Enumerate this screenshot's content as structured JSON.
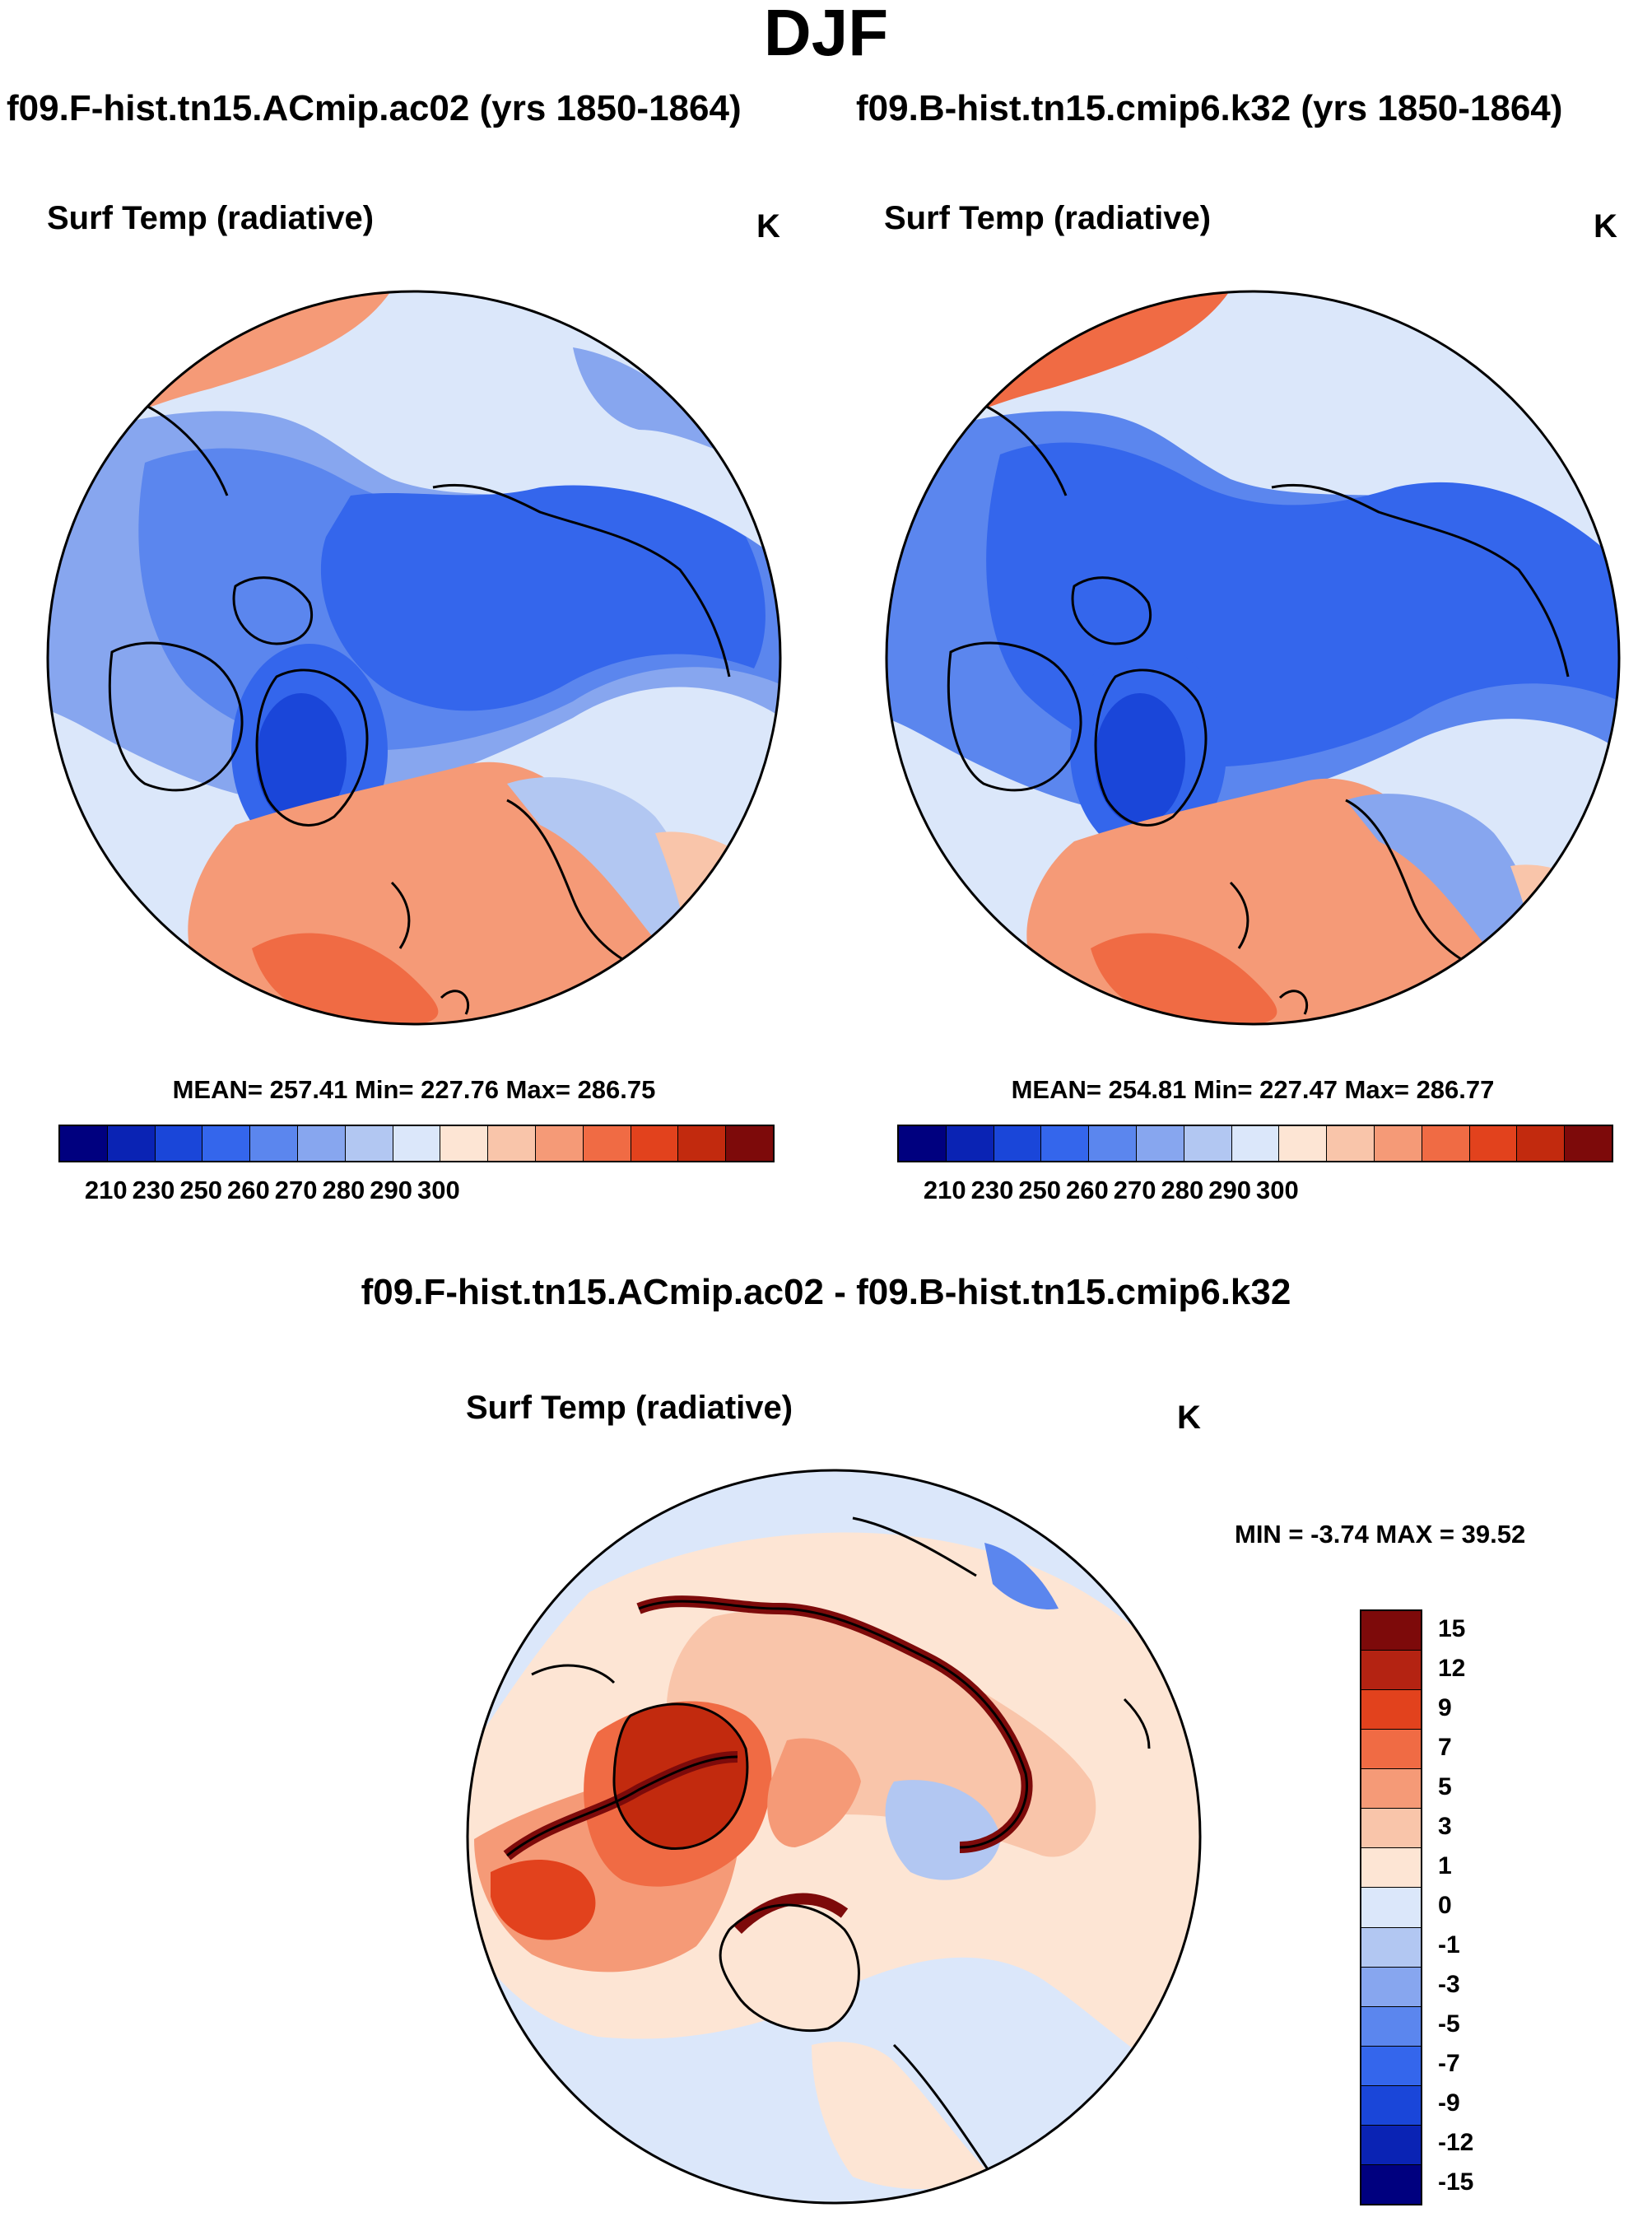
{
  "figure": {
    "season": "DJF",
    "case_left": "f09.F-hist.tn15.ACmip.ac02 (yrs 1850-1864)",
    "case_right": "f09.B-hist.tn15.cmip6.k32 (yrs 1850-1864)",
    "diff_title": "f09.F-hist.tn15.ACmip.ac02 - f09.B-hist.tn15.cmip6.k32"
  },
  "panels": {
    "left": {
      "variable": "Surf Temp (radiative)",
      "units": "K",
      "stats": "MEAN= 257.41  Min= 227.76  Max= 286.75"
    },
    "right": {
      "variable": "Surf Temp (radiative)",
      "units": "K",
      "stats": "MEAN= 254.81  Min= 227.47  Max= 286.77"
    },
    "diff": {
      "variable": "Surf Temp (radiative)",
      "units": "K",
      "stats": "MIN =  -3.74 MAX =  39.52"
    }
  },
  "colorbars": {
    "abs_colors": [
      "#00007f",
      "#0a23b4",
      "#1a46d9",
      "#3466ec",
      "#5b86ee",
      "#87a6ef",
      "#b2c7f2",
      "#dbe7fa",
      "#fde5d4",
      "#f9c5aa",
      "#f59a77",
      "#f06b44",
      "#e2421d",
      "#c22a0e",
      "#7d0a0a"
    ],
    "abs_ticks": [
      "210",
      "230",
      "250",
      "260",
      "270",
      "280",
      "290",
      "300"
    ],
    "diff_colors": [
      "#7d0a0a",
      "#b42312",
      "#e2421d",
      "#f06b44",
      "#f59a77",
      "#f9c5aa",
      "#fde5d4",
      "#dbe7fa",
      "#b2c7f2",
      "#87a6ef",
      "#5b86ee",
      "#3466ec",
      "#1a46d9",
      "#0a23b4",
      "#00007f"
    ],
    "diff_ticks": [
      "15",
      "12",
      "9",
      "7",
      "5",
      "3",
      "1",
      "0",
      "-1",
      "-3",
      "-5",
      "-7",
      "-9",
      "-12",
      "-15"
    ]
  },
  "legend_labels": {
    "map_left": "polar stereographic map, north pole",
    "map_right": "polar stereographic map, north pole",
    "map_diff": "polar stereographic difference map"
  }
}
